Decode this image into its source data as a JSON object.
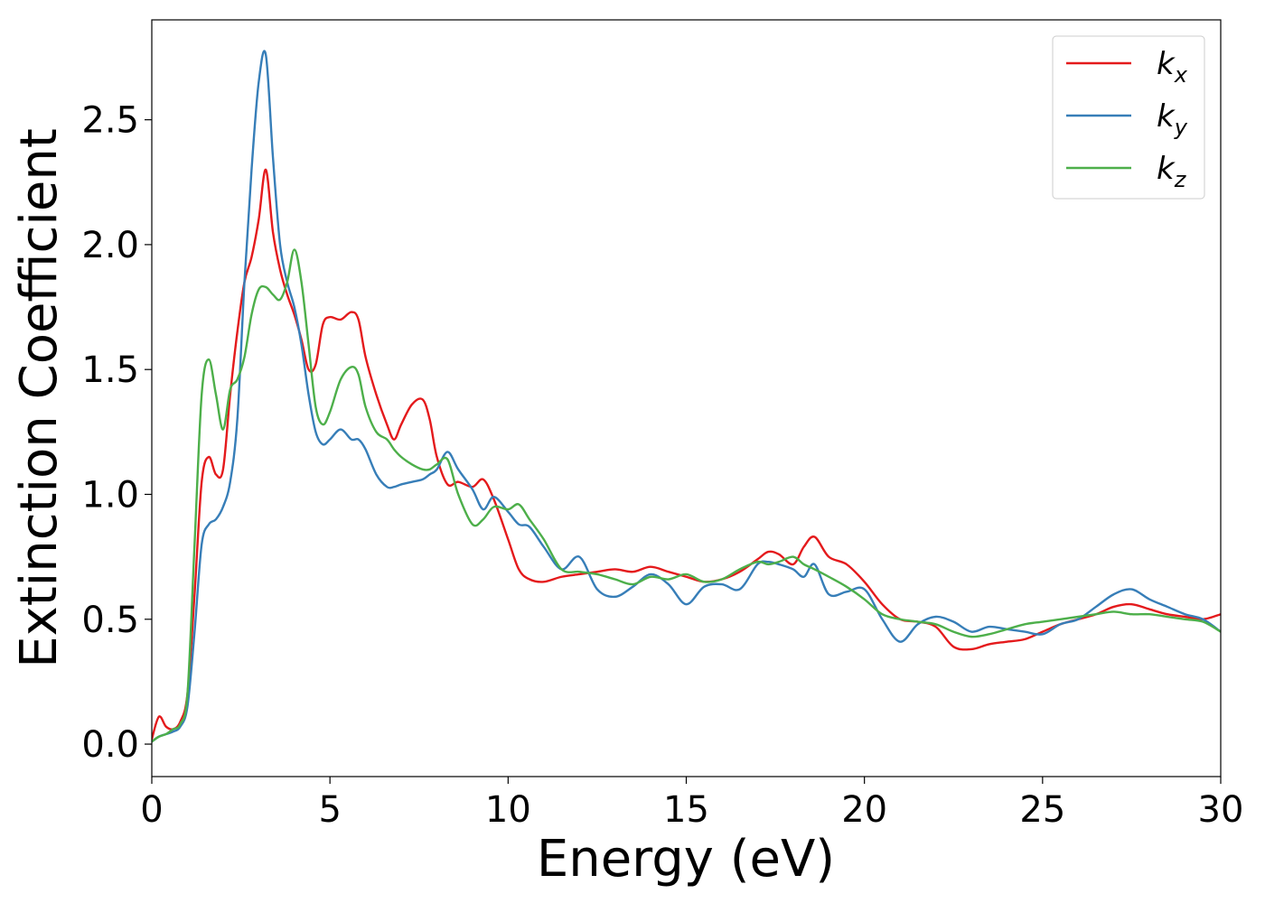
{
  "chart_data": {
    "type": "line",
    "title": "",
    "xlabel": "Energy (eV)",
    "ylabel": "Extinction Coefficient",
    "xlim": [
      0,
      30
    ],
    "ylim": [
      -0.13,
      2.9
    ],
    "xticks": [
      0,
      5,
      10,
      15,
      20,
      25,
      30
    ],
    "xtick_labels": [
      "0",
      "5",
      "10",
      "15",
      "20",
      "25",
      "30"
    ],
    "yticks": [
      0,
      0.5,
      1.0,
      1.5,
      2.0,
      2.5
    ],
    "ytick_labels": [
      "0.0",
      "0.5",
      "1.0",
      "1.5",
      "2.0",
      "2.5"
    ],
    "grid": false,
    "legend_position": "top-right",
    "series": [
      {
        "name": "k",
        "subscript": "x",
        "color": "#e41a1c",
        "x": [
          0,
          0.2,
          0.4,
          0.6,
          0.8,
          1.0,
          1.2,
          1.4,
          1.6,
          1.8,
          2.0,
          2.2,
          2.4,
          2.6,
          2.8,
          3.0,
          3.2,
          3.4,
          3.6,
          3.8,
          4.0,
          4.2,
          4.4,
          4.6,
          4.8,
          5.0,
          5.3,
          5.6,
          5.8,
          6.0,
          6.3,
          6.6,
          6.8,
          7.0,
          7.3,
          7.6,
          7.8,
          8.0,
          8.3,
          8.6,
          9.0,
          9.3,
          9.6,
          10.0,
          10.3,
          10.6,
          11.0,
          11.5,
          12.0,
          12.5,
          13.0,
          13.5,
          14.0,
          14.5,
          15.0,
          15.5,
          16.0,
          16.5,
          17.0,
          17.3,
          17.6,
          18.0,
          18.3,
          18.6,
          19.0,
          19.5,
          20.0,
          20.5,
          21.0,
          21.5,
          22.0,
          22.5,
          23.0,
          23.5,
          24.0,
          24.5,
          25.0,
          25.5,
          26.0,
          26.5,
          27.0,
          27.5,
          28.0,
          28.5,
          29.0,
          29.5,
          30.0
        ],
        "values": [
          0.02,
          0.11,
          0.07,
          0.06,
          0.09,
          0.2,
          0.6,
          1.05,
          1.15,
          1.08,
          1.1,
          1.4,
          1.65,
          1.85,
          1.95,
          2.1,
          2.3,
          2.05,
          1.9,
          1.8,
          1.72,
          1.62,
          1.5,
          1.52,
          1.68,
          1.71,
          1.7,
          1.73,
          1.7,
          1.55,
          1.4,
          1.28,
          1.22,
          1.28,
          1.36,
          1.38,
          1.3,
          1.15,
          1.04,
          1.05,
          1.03,
          1.06,
          0.98,
          0.82,
          0.7,
          0.66,
          0.65,
          0.67,
          0.68,
          0.69,
          0.7,
          0.69,
          0.71,
          0.69,
          0.67,
          0.65,
          0.66,
          0.69,
          0.74,
          0.77,
          0.76,
          0.72,
          0.79,
          0.83,
          0.75,
          0.72,
          0.65,
          0.56,
          0.5,
          0.49,
          0.47,
          0.39,
          0.38,
          0.4,
          0.41,
          0.42,
          0.45,
          0.48,
          0.5,
          0.52,
          0.55,
          0.56,
          0.54,
          0.52,
          0.51,
          0.5,
          0.52
        ]
      },
      {
        "name": "k",
        "subscript": "y",
        "color": "#377eb8",
        "x": [
          0,
          0.2,
          0.4,
          0.6,
          0.8,
          1.0,
          1.2,
          1.4,
          1.6,
          1.8,
          2.0,
          2.2,
          2.4,
          2.6,
          2.8,
          3.0,
          3.2,
          3.4,
          3.6,
          3.8,
          4.0,
          4.2,
          4.4,
          4.6,
          4.8,
          5.0,
          5.3,
          5.6,
          5.8,
          6.0,
          6.3,
          6.6,
          6.8,
          7.0,
          7.3,
          7.6,
          7.8,
          8.0,
          8.3,
          8.6,
          9.0,
          9.3,
          9.6,
          10.0,
          10.3,
          10.6,
          11.0,
          11.5,
          12.0,
          12.5,
          13.0,
          13.5,
          14.0,
          14.5,
          15.0,
          15.5,
          16.0,
          16.5,
          17.0,
          17.3,
          17.6,
          18.0,
          18.3,
          18.6,
          19.0,
          19.5,
          20.0,
          20.5,
          21.0,
          21.5,
          22.0,
          22.5,
          23.0,
          23.5,
          24.0,
          24.5,
          25.0,
          25.5,
          26.0,
          26.5,
          27.0,
          27.5,
          28.0,
          28.5,
          29.0,
          29.5,
          30.0
        ],
        "values": [
          0.01,
          0.03,
          0.04,
          0.05,
          0.07,
          0.15,
          0.45,
          0.8,
          0.88,
          0.9,
          0.95,
          1.05,
          1.3,
          1.85,
          2.3,
          2.65,
          2.76,
          2.35,
          2.0,
          1.85,
          1.75,
          1.6,
          1.4,
          1.25,
          1.2,
          1.22,
          1.26,
          1.22,
          1.22,
          1.18,
          1.08,
          1.03,
          1.03,
          1.04,
          1.05,
          1.06,
          1.08,
          1.1,
          1.17,
          1.1,
          1.02,
          0.94,
          0.99,
          0.93,
          0.88,
          0.87,
          0.79,
          0.7,
          0.75,
          0.62,
          0.59,
          0.63,
          0.68,
          0.64,
          0.56,
          0.63,
          0.64,
          0.62,
          0.72,
          0.73,
          0.72,
          0.7,
          0.67,
          0.72,
          0.6,
          0.61,
          0.62,
          0.5,
          0.41,
          0.48,
          0.51,
          0.49,
          0.45,
          0.47,
          0.46,
          0.45,
          0.44,
          0.48,
          0.5,
          0.55,
          0.6,
          0.62,
          0.58,
          0.55,
          0.52,
          0.5,
          0.45
        ]
      },
      {
        "name": "k",
        "subscript": "z",
        "color": "#4daf4a",
        "x": [
          0,
          0.2,
          0.4,
          0.6,
          0.8,
          1.0,
          1.2,
          1.4,
          1.6,
          1.8,
          2.0,
          2.2,
          2.4,
          2.6,
          2.8,
          3.0,
          3.2,
          3.4,
          3.6,
          3.8,
          4.0,
          4.2,
          4.4,
          4.6,
          4.8,
          5.0,
          5.3,
          5.6,
          5.8,
          6.0,
          6.3,
          6.6,
          6.8,
          7.0,
          7.3,
          7.6,
          7.8,
          8.0,
          8.3,
          8.6,
          9.0,
          9.3,
          9.6,
          10.0,
          10.3,
          10.6,
          11.0,
          11.5,
          12.0,
          12.5,
          13.0,
          13.5,
          14.0,
          14.5,
          15.0,
          15.5,
          16.0,
          16.5,
          17.0,
          17.3,
          17.6,
          18.0,
          18.3,
          18.6,
          19.0,
          19.5,
          20.0,
          20.5,
          21.0,
          21.5,
          22.0,
          22.5,
          23.0,
          23.5,
          24.0,
          24.5,
          25.0,
          25.5,
          26.0,
          26.5,
          27.0,
          27.5,
          28.0,
          28.5,
          29.0,
          29.5,
          30.0
        ],
        "values": [
          0.01,
          0.03,
          0.04,
          0.06,
          0.08,
          0.2,
          0.8,
          1.4,
          1.54,
          1.4,
          1.26,
          1.42,
          1.46,
          1.55,
          1.72,
          1.82,
          1.83,
          1.8,
          1.78,
          1.85,
          1.98,
          1.85,
          1.6,
          1.35,
          1.28,
          1.33,
          1.46,
          1.51,
          1.48,
          1.35,
          1.25,
          1.22,
          1.18,
          1.15,
          1.12,
          1.1,
          1.1,
          1.12,
          1.14,
          1.0,
          0.88,
          0.9,
          0.95,
          0.94,
          0.96,
          0.9,
          0.82,
          0.7,
          0.69,
          0.68,
          0.66,
          0.64,
          0.67,
          0.66,
          0.68,
          0.65,
          0.66,
          0.7,
          0.73,
          0.72,
          0.73,
          0.75,
          0.72,
          0.7,
          0.67,
          0.63,
          0.58,
          0.52,
          0.5,
          0.49,
          0.48,
          0.45,
          0.43,
          0.44,
          0.46,
          0.48,
          0.49,
          0.5,
          0.51,
          0.52,
          0.53,
          0.52,
          0.52,
          0.51,
          0.5,
          0.49,
          0.45
        ]
      }
    ]
  }
}
